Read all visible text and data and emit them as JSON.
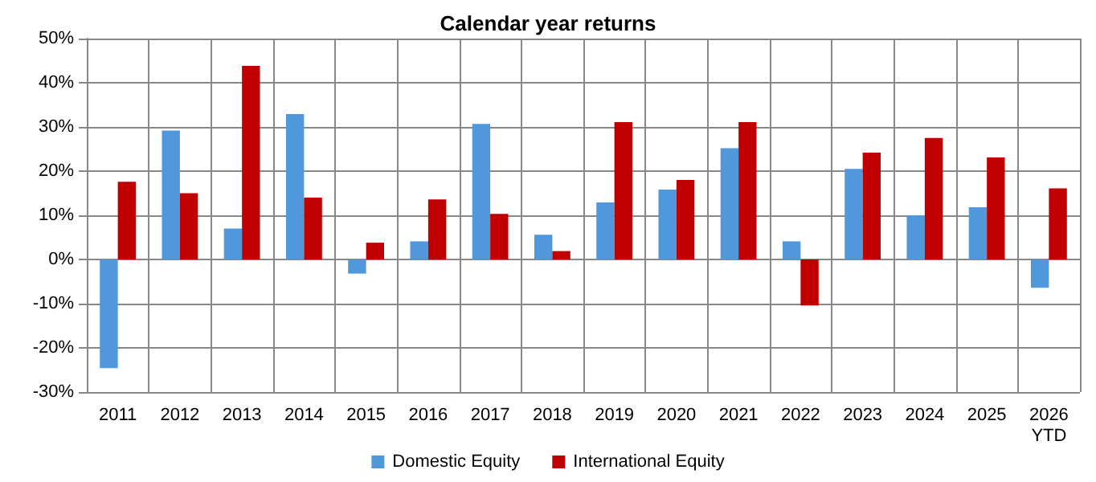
{
  "chart_data": {
    "type": "bar",
    "title": "Calendar year returns",
    "categories": [
      "2011",
      "2012",
      "2013",
      "2014",
      "2015",
      "2016",
      "2017",
      "2018",
      "2019",
      "2020",
      "2021",
      "2022",
      "2023",
      "2024",
      "2025",
      "2026\nYTD"
    ],
    "series": [
      {
        "name": "Domestic Equity",
        "color": "#5097db",
        "values": [
          -24.6,
          29.2,
          7.0,
          32.9,
          -3.2,
          4.1,
          30.7,
          5.6,
          12.9,
          15.8,
          25.2,
          4.1,
          20.5,
          10.0,
          11.8,
          -6.4
        ]
      },
      {
        "name": "International Equity",
        "color": "#c00000",
        "values": [
          17.6,
          15.0,
          43.8,
          14.0,
          3.8,
          13.6,
          10.3,
          1.9,
          31.1,
          18.0,
          31.1,
          -10.4,
          24.2,
          27.5,
          23.1,
          16.1
        ]
      }
    ],
    "ylim": [
      -30,
      50
    ],
    "yticks": [
      {
        "value": -30,
        "label": "-30%"
      },
      {
        "value": -20,
        "label": "-20%"
      },
      {
        "value": -10,
        "label": "-10%"
      },
      {
        "value": 0,
        "label": "0%"
      },
      {
        "value": 10,
        "label": "10%"
      },
      {
        "value": 20,
        "label": "20%"
      },
      {
        "value": 30,
        "label": "30%"
      },
      {
        "value": 40,
        "label": "40%"
      },
      {
        "value": 50,
        "label": "50%"
      }
    ],
    "grid": true,
    "legend": "bottom"
  }
}
